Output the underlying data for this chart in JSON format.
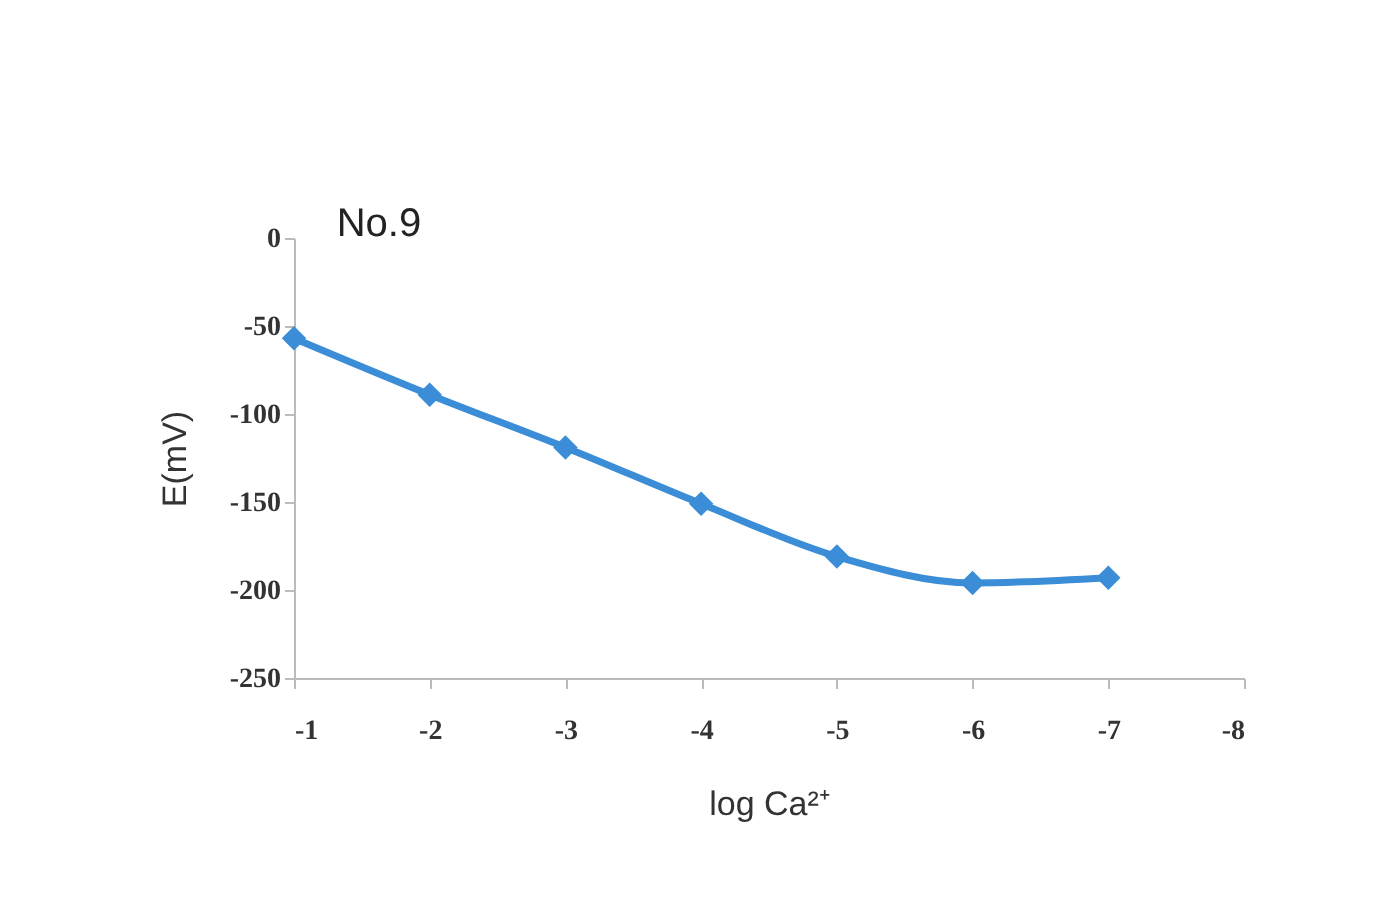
{
  "chart_data": {
    "type": "line",
    "title": "No.9",
    "xlabel": "log Ca²⁺",
    "ylabel": "E(mV)",
    "x": [
      -1,
      -2,
      -3,
      -4,
      -5,
      -6,
      -7
    ],
    "series": [
      {
        "color": "#3a8dd6",
        "values": [
          -57,
          -89,
          -119,
          -151,
          -181,
          -196,
          -193
        ]
      }
    ],
    "xlim": [
      -1,
      -8
    ],
    "xticks": [
      -1,
      -2,
      -3,
      -4,
      -5,
      -6,
      -7,
      -8
    ],
    "ylim": [
      -250,
      0
    ],
    "yticks": [
      -250,
      -200,
      -150,
      -100,
      -50,
      0
    ],
    "marker": "diamond",
    "line_style": "solid",
    "legend": false,
    "grid": false
  }
}
